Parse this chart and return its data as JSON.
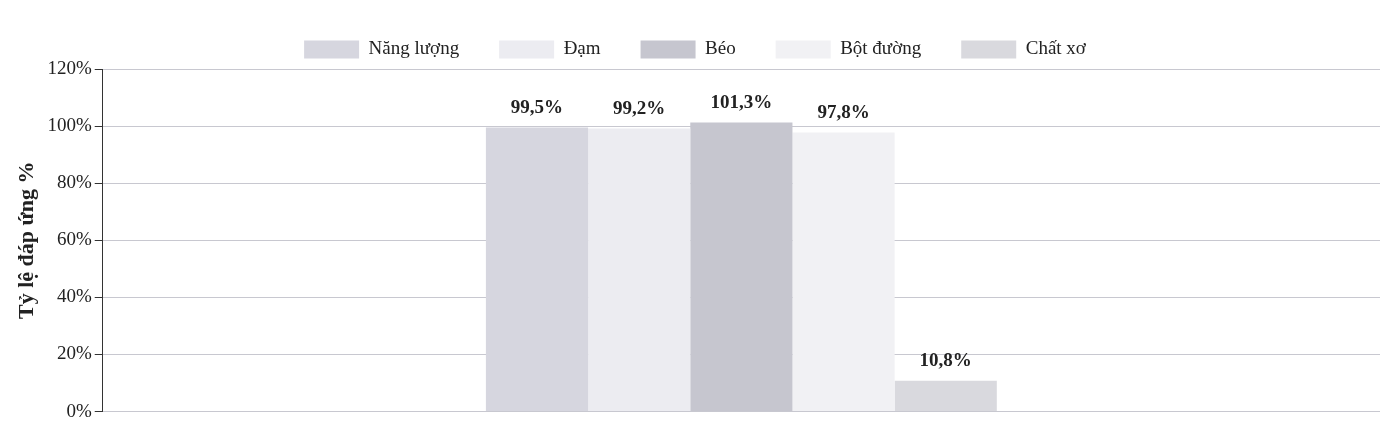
{
  "chart_data": {
    "type": "bar",
    "ylabel": "Tỷ lệ đáp ứng %",
    "categories": [
      null
    ],
    "series": [
      {
        "name": "Năng lượng",
        "color": "#d6d6df",
        "values": [
          99.5
        ],
        "value_labels": [
          "99,5%"
        ]
      },
      {
        "name": "Đạm",
        "color": "#ececf1",
        "values": [
          99.2
        ],
        "value_labels": [
          "99,2%"
        ]
      },
      {
        "name": "Béo",
        "color": "#c6c6cf",
        "values": [
          101.3
        ],
        "value_labels": [
          "101,3%"
        ]
      },
      {
        "name": "Bột đường",
        "color": "#f1f1f4",
        "values": [
          97.8
        ],
        "value_labels": [
          "97,8%"
        ]
      },
      {
        "name": "Chất xơ",
        "color": "#d9d9de",
        "values": [
          10.8
        ],
        "value_labels": [
          "10,8%"
        ]
      }
    ],
    "ylim": [
      0,
      120
    ],
    "yticks": [
      {
        "value": 0,
        "label": "0%"
      },
      {
        "value": 20,
        "label": "20%"
      },
      {
        "value": 40,
        "label": "40%"
      },
      {
        "value": 60,
        "label": "60%"
      },
      {
        "value": 80,
        "label": "80%"
      },
      {
        "value": 100,
        "label": "100%"
      },
      {
        "value": 120,
        "label": "120%"
      }
    ],
    "grid": "y",
    "legend": "top"
  }
}
